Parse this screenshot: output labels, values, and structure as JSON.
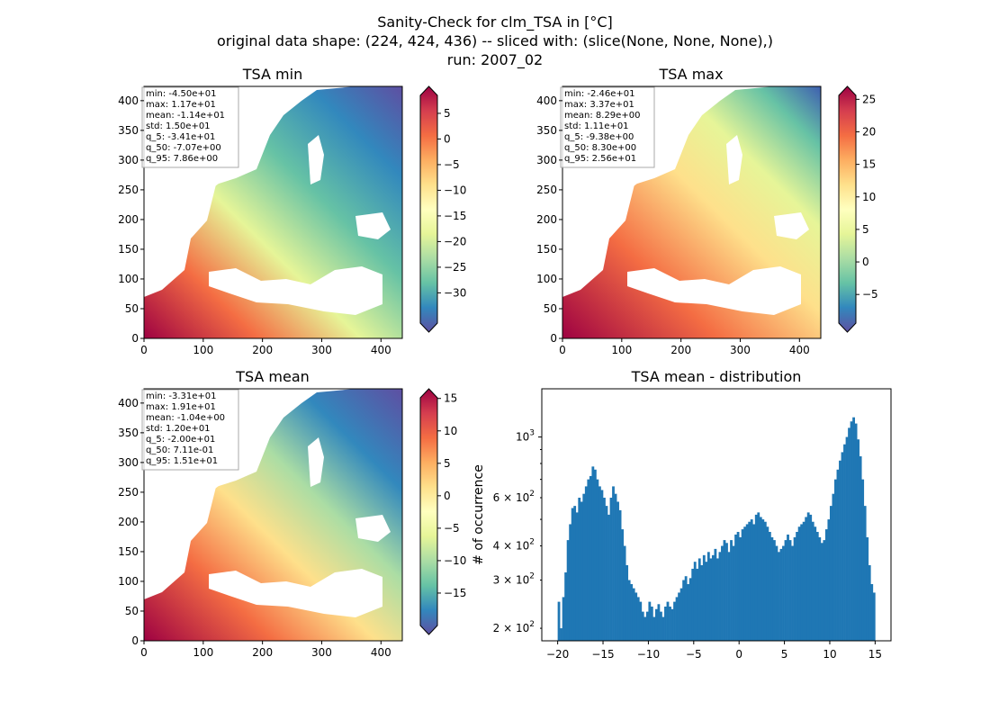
{
  "figure": {
    "title_lines": [
      "Sanity-Check for clm_TSA in [°C]",
      "original data shape: (224, 424, 436) -- sliced with: (slice(None, None, None),)",
      "run: 2007_02"
    ]
  },
  "chart_data": [
    {
      "type": "heatmap",
      "title": "TSA min",
      "xlim": [
        0,
        436
      ],
      "ylim": [
        0,
        424
      ],
      "x_ticks": [
        0,
        100,
        200,
        300,
        400
      ],
      "y_ticks": [
        0,
        50,
        100,
        150,
        200,
        250,
        300,
        350,
        400
      ],
      "colorbar": {
        "ticks": [
          5,
          0,
          -5,
          -10,
          -15,
          -20,
          -25,
          -30
        ],
        "range": [
          -35.9,
          8.5
        ],
        "colormap": "Spectral"
      },
      "stats_box": [
        "min: -4.50e+01",
        "max: 1.17e+01",
        "mean: -1.14e+01",
        "std: 1.50e+01",
        "q_5: -3.41e+01",
        "q_50: -7.07e+00",
        "q_95: 7.86e+00"
      ]
    },
    {
      "type": "heatmap",
      "title": "TSA max",
      "xlim": [
        0,
        436
      ],
      "ylim": [
        0,
        424
      ],
      "x_ticks": [
        0,
        100,
        200,
        300,
        400
      ],
      "y_ticks": [
        0,
        50,
        100,
        150,
        200,
        250,
        300,
        350,
        400
      ],
      "colorbar": {
        "ticks": [
          25,
          20,
          15,
          10,
          5,
          0,
          -5
        ],
        "range": [
          -9.4,
          25.6
        ],
        "colormap": "Spectral"
      },
      "stats_box": [
        "min: -2.46e+01",
        "max: 3.37e+01",
        "mean: 8.29e+00",
        "std: 1.11e+01",
        "q_5: -9.38e+00",
        "q_50: 8.30e+00",
        "q_95: 2.56e+01"
      ]
    },
    {
      "type": "heatmap",
      "title": "TSA mean",
      "xlim": [
        0,
        436
      ],
      "ylim": [
        0,
        424
      ],
      "x_ticks": [
        0,
        100,
        200,
        300,
        400
      ],
      "y_ticks": [
        0,
        50,
        100,
        150,
        200,
        250,
        300,
        350,
        400
      ],
      "colorbar": {
        "ticks": [
          15,
          10,
          5,
          0,
          -5,
          -10,
          -15
        ],
        "range": [
          -20.0,
          15.1
        ],
        "colormap": "Spectral"
      },
      "stats_box": [
        "min: -3.31e+01",
        "max: 1.91e+01",
        "mean: -1.04e+00",
        "std: 1.20e+01",
        "q_5: -2.00e+01",
        "q_50: 7.11e-01",
        "q_95: 1.51e+01"
      ]
    },
    {
      "type": "bar",
      "subtype": "histogram",
      "title": "TSA mean - distribution",
      "ylabel": "# of occurrence",
      "xlim": [
        -21.75,
        16.75
      ],
      "x_ticks": [
        -20,
        -15,
        -10,
        -5,
        0,
        5,
        10,
        15
      ],
      "y_scale": "log",
      "ylim": [
        180,
        1500
      ],
      "y_major_ticks": [
        {
          "value": 1000,
          "label": "10",
          "sup": "3"
        }
      ],
      "y_minor_labels": [
        {
          "value": 200,
          "label": "2 × 10",
          "sup": "2"
        },
        {
          "value": 300,
          "label": "3 × 10",
          "sup": "2"
        },
        {
          "value": 400,
          "label": "4 × 10",
          "sup": "2"
        },
        {
          "value": 600,
          "label": "6 × 10",
          "sup": "2"
        }
      ],
      "bar_color": "#1f77b4",
      "bin_range": [
        -20,
        15
      ],
      "bin_count": 140,
      "counts": [
        250,
        200,
        260,
        320,
        420,
        480,
        550,
        560,
        530,
        600,
        580,
        620,
        660,
        700,
        720,
        780,
        760,
        700,
        660,
        640,
        600,
        560,
        520,
        600,
        660,
        620,
        580,
        540,
        460,
        400,
        340,
        300,
        290,
        280,
        270,
        260,
        250,
        230,
        220,
        230,
        250,
        240,
        220,
        235,
        245,
        230,
        220,
        240,
        250,
        240,
        235,
        250,
        260,
        270,
        280,
        300,
        310,
        290,
        305,
        330,
        350,
        330,
        360,
        340,
        370,
        350,
        380,
        360,
        370,
        390,
        360,
        380,
        400,
        420,
        410,
        380,
        420,
        400,
        440,
        450,
        430,
        460,
        470,
        480,
        490,
        500,
        480,
        520,
        530,
        510,
        500,
        490,
        470,
        450,
        430,
        420,
        400,
        380,
        390,
        400,
        420,
        440,
        420,
        400,
        430,
        450,
        470,
        480,
        490,
        510,
        530,
        520,
        490,
        470,
        450,
        430,
        410,
        420,
        460,
        500,
        560,
        620,
        700,
        760,
        820,
        880,
        940,
        1000,
        1080,
        1140,
        1180,
        1120,
        980,
        850,
        700,
        560,
        430,
        340,
        290,
        270
      ]
    }
  ]
}
